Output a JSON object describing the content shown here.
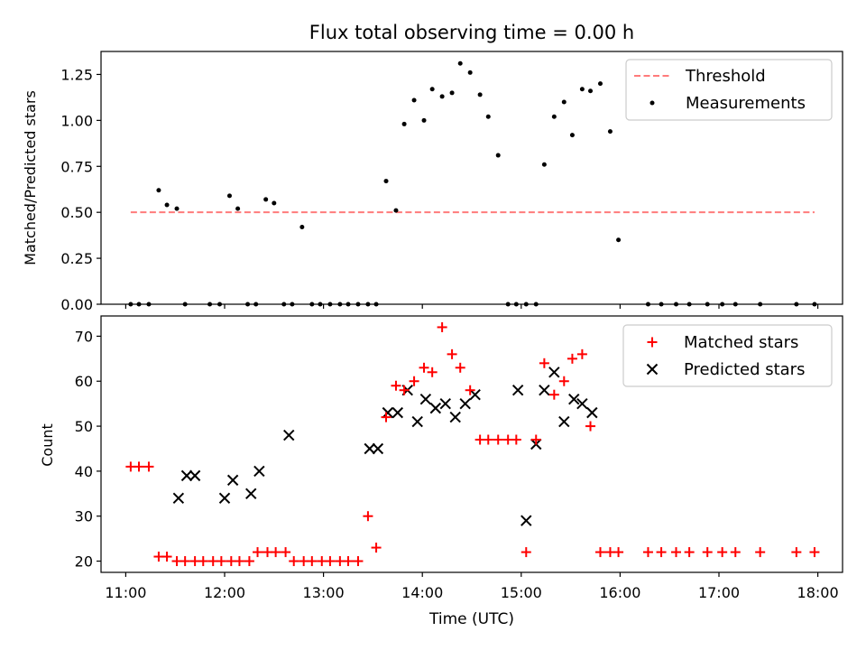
{
  "chart_data": [
    {
      "type": "scatter",
      "title": "Flux total observing time = 0.00 h",
      "xlabel": "",
      "ylabel": "Matched/Predicted stars",
      "ylim": [
        0,
        1.375
      ],
      "yticks": [
        0.0,
        0.25,
        0.5,
        0.75,
        1.0,
        1.25
      ],
      "ytick_labels": [
        "0.00",
        "0.25",
        "0.50",
        "0.75",
        "1.00",
        "1.25"
      ],
      "legend": {
        "placement": "top-right",
        "entries": [
          "Threshold",
          "Measurements"
        ]
      },
      "threshold": {
        "name": "Threshold",
        "value": 0.5,
        "x_range": [
          "11:03",
          "17:58"
        ],
        "color": "#ff7b7b",
        "style": "dashed"
      },
      "series": [
        {
          "name": "Measurements",
          "marker": "dot",
          "color": "#000000",
          "x": [
            "11:03",
            "11:08",
            "11:14",
            "11:20",
            "11:25",
            "11:31",
            "11:36",
            "11:51",
            "11:57",
            "12:03",
            "12:08",
            "12:14",
            "12:19",
            "12:25",
            "12:30",
            "12:36",
            "12:41",
            "12:47",
            "12:53",
            "12:58",
            "13:04",
            "13:10",
            "13:15",
            "13:21",
            "13:27",
            "13:32",
            "13:38",
            "13:44",
            "13:49",
            "13:55",
            "14:01",
            "14:06",
            "14:12",
            "14:18",
            "14:23",
            "14:29",
            "14:35",
            "14:40",
            "14:46",
            "14:52",
            "14:57",
            "15:03",
            "15:09",
            "15:14",
            "15:20",
            "15:26",
            "15:31",
            "15:37",
            "15:42",
            "15:48",
            "15:54",
            "15:59",
            "16:17",
            "16:25",
            "16:34",
            "16:42",
            "16:53",
            "17:02",
            "17:10",
            "17:25",
            "17:47",
            "17:58"
          ],
          "y": [
            0.0,
            0.0,
            0.0,
            0.62,
            0.54,
            0.52,
            0.0,
            0.0,
            0.0,
            0.59,
            0.52,
            0.0,
            0.0,
            0.57,
            0.55,
            0.0,
            0.0,
            0.42,
            0.0,
            0.0,
            0.0,
            0.0,
            0.0,
            0.0,
            0.0,
            0.0,
            0.67,
            0.51,
            0.98,
            1.11,
            1.0,
            1.17,
            1.13,
            1.15,
            1.31,
            1.26,
            1.14,
            1.02,
            0.81,
            0.0,
            0.0,
            0.0,
            0.0,
            0.76,
            1.02,
            1.1,
            0.92,
            1.17,
            1.16,
            1.2,
            0.94,
            0.35,
            0.0,
            0.0,
            0.0,
            0.0,
            0.0,
            0.0,
            0.0,
            0.0,
            0.0,
            0.0
          ]
        }
      ]
    },
    {
      "type": "scatter",
      "title": "",
      "xlabel": "Time (UTC)",
      "ylabel": "Count",
      "ylim": [
        17.5,
        74.5
      ],
      "yticks": [
        20,
        30,
        40,
        50,
        60,
        70
      ],
      "xlim": [
        "10:45",
        "18:15"
      ],
      "xtick_labels": [
        "11:00",
        "12:00",
        "13:00",
        "14:00",
        "15:00",
        "16:00",
        "17:00",
        "18:00"
      ],
      "legend": {
        "placement": "top-right",
        "entries": [
          "Matched stars",
          "Predicted stars"
        ]
      },
      "series": [
        {
          "name": "Matched stars",
          "marker": "plus",
          "color": "#ff0000",
          "x": [
            "11:03",
            "11:08",
            "11:14",
            "11:20",
            "11:25",
            "11:31",
            "11:36",
            "11:42",
            "11:47",
            "11:53",
            "11:58",
            "12:04",
            "12:09",
            "12:15",
            "12:20",
            "12:26",
            "12:31",
            "12:37",
            "12:42",
            "12:48",
            "12:53",
            "12:59",
            "13:04",
            "13:10",
            "13:15",
            "13:21",
            "13:27",
            "13:32",
            "13:38",
            "13:44",
            "13:49",
            "13:55",
            "14:01",
            "14:06",
            "14:12",
            "14:18",
            "14:23",
            "14:29",
            "14:35",
            "14:40",
            "14:46",
            "14:52",
            "14:57",
            "15:03",
            "15:09",
            "15:14",
            "15:20",
            "15:26",
            "15:31",
            "15:37",
            "15:42",
            "15:48",
            "15:54",
            "15:59",
            "16:17",
            "16:25",
            "16:34",
            "16:42",
            "16:53",
            "17:02",
            "17:10",
            "17:25",
            "17:47",
            "17:58"
          ],
          "y": [
            41,
            41,
            41,
            21,
            21,
            20,
            20,
            20,
            20,
            20,
            20,
            20,
            20,
            20,
            22,
            22,
            22,
            22,
            20,
            20,
            20,
            20,
            20,
            20,
            20,
            20,
            30,
            23,
            52,
            59,
            58,
            60,
            63,
            62,
            72,
            66,
            63,
            58,
            47,
            47,
            47,
            47,
            47,
            22,
            47,
            64,
            57,
            60,
            65,
            66,
            50,
            22,
            22,
            22,
            22,
            22,
            22,
            22,
            22,
            22,
            22,
            22,
            22,
            22
          ]
        },
        {
          "name": "Predicted stars",
          "marker": "x",
          "color": "#000000",
          "x": [
            "11:32",
            "11:37",
            "11:42",
            "12:00",
            "12:05",
            "12:16",
            "12:21",
            "12:39",
            "13:28",
            "13:33",
            "13:39",
            "13:45",
            "13:51",
            "13:57",
            "14:02",
            "14:08",
            "14:14",
            "14:20",
            "14:26",
            "14:32",
            "14:58",
            "15:03",
            "15:09",
            "15:14",
            "15:20",
            "15:26",
            "15:32",
            "15:37",
            "15:43"
          ],
          "y": [
            34,
            39,
            39,
            34,
            38,
            35,
            40,
            48,
            45,
            45,
            53,
            53,
            58,
            51,
            56,
            54,
            55,
            52,
            55,
            57,
            58,
            29,
            46,
            58,
            62,
            51,
            56,
            55,
            53
          ]
        }
      ]
    }
  ]
}
